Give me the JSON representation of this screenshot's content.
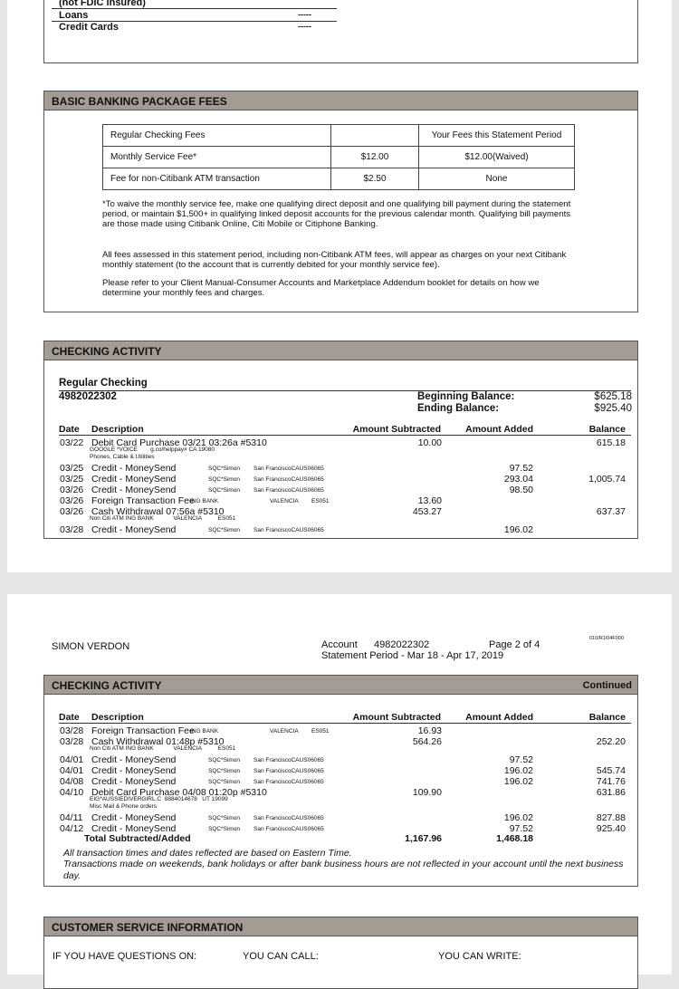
{
  "summary": {
    "fdic_note": "(not FDIC insured)",
    "rows": [
      {
        "label": "Loans",
        "value": "-----"
      },
      {
        "label": "Credit Cards",
        "value": "-----"
      }
    ]
  },
  "fees": {
    "title": "BASIC BANKING PACKAGE FEES",
    "table": [
      [
        "Regular Checking Fees",
        "",
        "Your Fees this Statement Period"
      ],
      [
        "Monthly Service Fee*",
        "$12.00",
        "$12.00(Waived)"
      ],
      [
        "Fee for non-Citibank ATM transaction",
        "$2.50",
        "None"
      ]
    ],
    "notes": [
      "*To waive the monthly service fee, make one qualifying direct deposit and one qualifying bill payment during the statement period, or maintain $1,500+ in qualifying linked deposit accounts for the previous calendar month. Qualifying bill payments are those made using Citibank Online, Citi Mobile or Citiphone Banking.",
      "All fees assessed in this statement period, including non-Citibank ATM fees, will appear as charges on your next Citibank monthly statement (to the account that is currently debited for your monthly service fee).",
      "Please refer to your Client Manual-Consumer Accounts and Marketplace Addendum booklet for details on how we determine your monthly fees and charges."
    ]
  },
  "activity": {
    "title": "CHECKING ACTIVITY",
    "account_type": "Regular Checking",
    "account_number": "4982022302",
    "beginning_label": "Beginning Balance:",
    "beginning_value": "$625.18",
    "ending_label": "Ending Balance:",
    "ending_value": "$925.40",
    "columns": [
      "Date",
      "Description",
      "Amount Subtracted",
      "Amount Added",
      "Balance"
    ],
    "rows": [
      {
        "date": "03/22",
        "desc": "Debit Card Purchase 03/21 03:26a #5310",
        "sub": "",
        "loc": "",
        "code": "",
        "minus": "10.00",
        "plus": "",
        "bal": "615.18",
        "extra": [
          "GOOGLE *VOICE        g.co/helppay# CA 19080",
          "Phones, Cable & Utilities"
        ]
      },
      {
        "date": "03/25",
        "desc": "Credit - MoneySend",
        "sub": "SQC*Simon",
        "loc": "San FranciscoCAUS06065",
        "code": "",
        "minus": "",
        "plus": "97.52",
        "bal": ""
      },
      {
        "date": "03/25",
        "desc": "Credit - MoneySend",
        "sub": "SQC*Simon",
        "loc": "San FranciscoCAUS06065",
        "code": "",
        "minus": "",
        "plus": "293.04",
        "bal": "1,005.74"
      },
      {
        "date": "03/26",
        "desc": "Credit - MoneySend",
        "sub": "SQC*Simon",
        "loc": "San FranciscoCAUS06065",
        "code": "",
        "minus": "",
        "plus": "98.50",
        "bal": ""
      },
      {
        "date": "03/26",
        "desc": "Foreign Transaction Fee",
        "sub": "ING BANK",
        "loc": "VALENCIA",
        "code": "ES051",
        "minus": "13.60",
        "plus": "",
        "bal": ""
      },
      {
        "date": "03/26",
        "desc": "Cash Withdrawal 07:56a #5310",
        "sub": "",
        "loc": "",
        "code": "",
        "minus": "453.27",
        "plus": "",
        "bal": "637.37",
        "extra": [
          "Non Citi ATM ING BANK            VALENCIA          ES051"
        ]
      },
      {
        "date": "03/28",
        "desc": "Credit - MoneySend",
        "sub": "SQC*Simon",
        "loc": "San FranciscoCAUS06065",
        "code": "",
        "minus": "",
        "plus": "196.02",
        "bal": ""
      }
    ]
  },
  "page2": {
    "name": "SIMON VERDON",
    "account_label": "Account",
    "account_number": "4982022302",
    "page": "Page 2 of 4",
    "period": "Statement Period -  Mar 18 - Apr 17, 2019",
    "doc_code": "010/R1/04F000",
    "title": "CHECKING ACTIVITY",
    "continued": "Continued",
    "rows": [
      {
        "date": "03/28",
        "desc": "Foreign Transaction Fee",
        "sub": "ING BANK",
        "loc": "VALENCIA",
        "code": "ES051",
        "minus": "16.93",
        "plus": "",
        "bal": ""
      },
      {
        "date": "03/28",
        "desc": "Cash Withdrawal 01:48p #5310",
        "sub": "",
        "loc": "",
        "code": "",
        "minus": "564.26",
        "plus": "",
        "bal": "252.20",
        "extra": [
          "Non Citi ATM ING BANK            VALENCIA          ES051"
        ]
      },
      {
        "date": "04/01",
        "desc": "Credit - MoneySend",
        "sub": "SQC*Simon",
        "loc": "San FranciscoCAUS06065",
        "code": "",
        "minus": "",
        "plus": "97.52",
        "bal": ""
      },
      {
        "date": "04/01",
        "desc": "Credit - MoneySend",
        "sub": "SQC*Simon",
        "loc": "San FranciscoCAUS06065",
        "code": "",
        "minus": "",
        "plus": "196.02",
        "bal": "545.74"
      },
      {
        "date": "04/08",
        "desc": "Credit - MoneySend",
        "sub": "SQC*Simon",
        "loc": "San FranciscoCAUS06065",
        "code": "",
        "minus": "",
        "plus": "196.02",
        "bal": "741.76"
      },
      {
        "date": "04/10",
        "desc": "Debit Card Purchase 04/08 01:20p #5310",
        "sub": "",
        "loc": "",
        "code": "",
        "minus": "109.90",
        "plus": "",
        "bal": "631.86",
        "extra": [
          "EIG*AUSSIEDIVERGIRL.C  8884014678   UT 19099",
          "Misc Mail & Phone orders"
        ]
      },
      {
        "date": "04/11",
        "desc": "Credit - MoneySend",
        "sub": "SQC*Simon",
        "loc": "San FranciscoCAUS06065",
        "code": "",
        "minus": "",
        "plus": "196.02",
        "bal": "827.88"
      },
      {
        "date": "04/12",
        "desc": "Credit - MoneySend",
        "sub": "SQC*Simon",
        "loc": "San FranciscoCAUS06065",
        "code": "",
        "minus": "",
        "plus": "97.52",
        "bal": "925.40"
      }
    ],
    "total_label": "Total Subtracted/Added",
    "total_minus": "1,167.96",
    "total_plus": "1,468.18",
    "notes": [
      "All transaction times and dates reflected are based on Eastern Time.",
      "Transactions made on weekends, bank holidays or after bank business hours are not reflected in your account until the next business day."
    ],
    "cs_title": "CUSTOMER SERVICE INFORMATION",
    "cs_cols": [
      "IF YOU HAVE QUESTIONS ON:",
      "YOU CAN CALL:",
      "YOU CAN WRITE:"
    ]
  }
}
